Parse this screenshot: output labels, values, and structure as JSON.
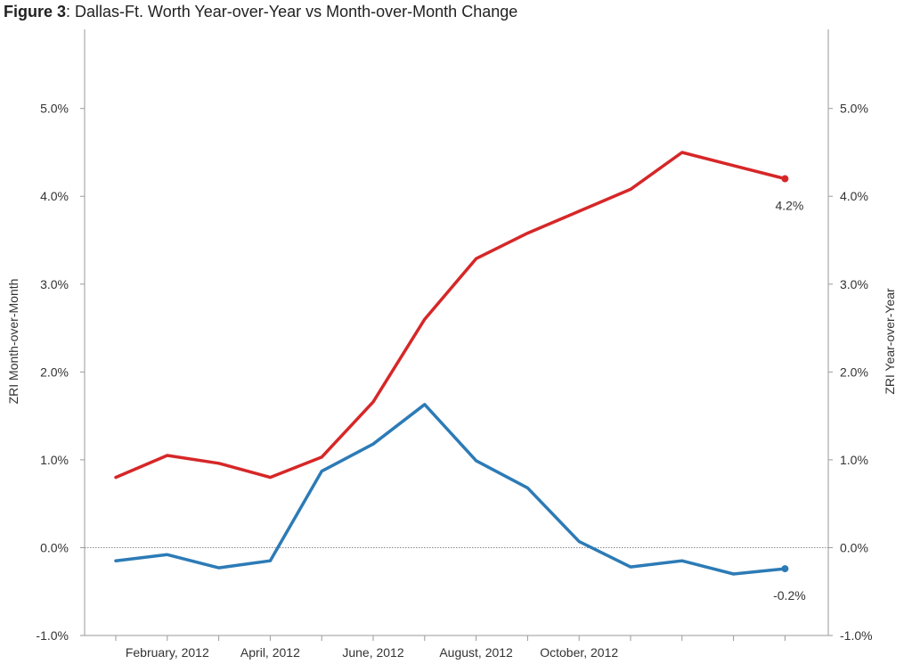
{
  "title": {
    "prefix": "Figure 3",
    "text": ": Dallas-Ft. Worth Year-over-Year vs Month-over-Month Change"
  },
  "chart_data": {
    "type": "line",
    "title": "Figure 3: Dallas-Ft. Worth Year-over-Year vs Month-over-Month Change",
    "y_left_label": "ZRI Month-over-Month",
    "y_right_label": "ZRI Year-over-Year",
    "ylim": [
      -1.0,
      5.9
    ],
    "y_ticks": [
      -1.0,
      0.0,
      1.0,
      2.0,
      3.0,
      4.0,
      5.0
    ],
    "y_tick_labels": [
      "-1.0%",
      "0.0%",
      "1.0%",
      "2.0%",
      "3.0%",
      "4.0%",
      "5.0%"
    ],
    "x_tick_labels": [
      "February, 2012",
      "April, 2012",
      "June, 2012",
      "August, 2012",
      "October, 2012"
    ],
    "x_tick_label_index": [
      1,
      3,
      5,
      7,
      9
    ],
    "num_points": 14,
    "zero_line": true,
    "series": [
      {
        "key": "yoy",
        "color": "#d62728",
        "values": [
          0.8,
          1.05,
          0.96,
          0.8,
          1.03,
          1.66,
          2.6,
          3.29,
          3.58,
          3.83,
          4.08,
          4.5,
          4.35,
          4.2
        ],
        "end_label": "4.2%"
      },
      {
        "key": "mom",
        "color": "#2c7bb6",
        "values": [
          -0.15,
          -0.08,
          -0.23,
          -0.15,
          0.87,
          1.18,
          1.63,
          0.99,
          0.68,
          0.07,
          -0.22,
          -0.15,
          -0.3,
          -0.24
        ],
        "end_label": "-0.2%"
      }
    ]
  }
}
